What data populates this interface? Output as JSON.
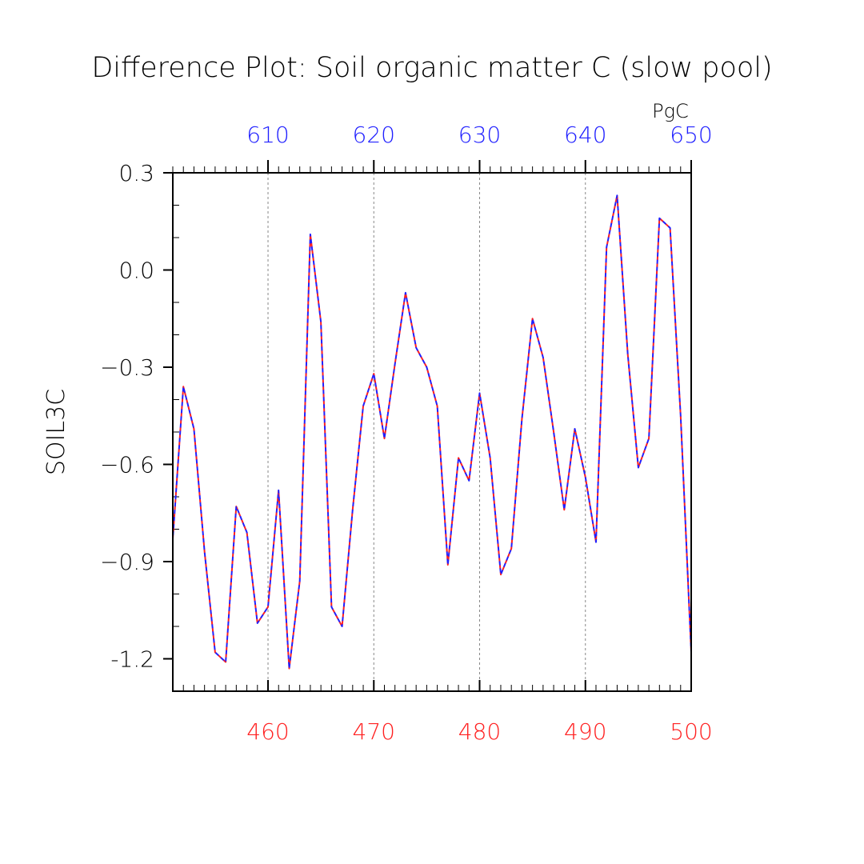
{
  "chart_data": {
    "type": "line",
    "title": "Difference Plot: Soil organic matter C (slow pool)",
    "ylabel": "SOIL3C",
    "top_axis_units": "PgC",
    "bottom_axis": {
      "xlim": [
        451,
        500
      ],
      "ticks": [
        460,
        470,
        480,
        490,
        500
      ],
      "tick_labels": [
        "460",
        "470",
        "480",
        "490",
        "500"
      ],
      "color": "#ff2020"
    },
    "top_axis": {
      "xlim": [
        601,
        650
      ],
      "ticks": [
        610,
        620,
        630,
        640,
        650
      ],
      "tick_labels": [
        "610",
        "620",
        "630",
        "640",
        "650"
      ],
      "color": "#2020ff"
    },
    "ylim": [
      -1.3,
      0.3
    ],
    "y_ticks": [
      0.3,
      0.0,
      -0.3,
      -0.6,
      -0.9,
      -1.2
    ],
    "y_tick_labels": [
      "0.3",
      "0.0",
      "−0.3",
      "−0.6",
      "−0.9",
      "-1.2"
    ],
    "grid": "vertical-dashed",
    "series": [
      {
        "color": "#ff2020",
        "dashed": true,
        "x": [
          451,
          452,
          453,
          454,
          455,
          456,
          457,
          458,
          459,
          460,
          461,
          462,
          463,
          464,
          465,
          466,
          467,
          468,
          469,
          470,
          471,
          472,
          473,
          474,
          475,
          476,
          477,
          478,
          479,
          480,
          481,
          482,
          483,
          484,
          485,
          486,
          487,
          488,
          489,
          490,
          491,
          492,
          493,
          494,
          495,
          496,
          497,
          498,
          499,
          500
        ],
        "values": [
          -0.83,
          -0.36,
          -0.49,
          -0.87,
          -1.18,
          -1.21,
          -0.73,
          -0.81,
          -1.09,
          -1.04,
          -0.68,
          -1.23,
          -0.96,
          0.11,
          -0.16,
          -1.04,
          -1.1,
          -0.74,
          -0.42,
          -0.32,
          -0.52,
          -0.29,
          -0.07,
          -0.24,
          -0.3,
          -0.42,
          -0.91,
          -0.58,
          -0.65,
          -0.38,
          -0.58,
          -0.94,
          -0.86,
          -0.46,
          -0.15,
          -0.27,
          -0.5,
          -0.74,
          -0.49,
          -0.64,
          -0.84,
          0.07,
          0.23,
          -0.26,
          -0.61,
          -0.52,
          0.16,
          0.13,
          -0.45,
          -1.18
        ]
      },
      {
        "color": "#2020ff",
        "dashed": false,
        "x": [
          601,
          602,
          603,
          604,
          605,
          606,
          607,
          608,
          609,
          610,
          611,
          612,
          613,
          614,
          615,
          616,
          617,
          618,
          619,
          620,
          621,
          622,
          623,
          624,
          625,
          626,
          627,
          628,
          629,
          630,
          631,
          632,
          633,
          634,
          635,
          636,
          637,
          638,
          639,
          640,
          641,
          642,
          643,
          644,
          645,
          646,
          647,
          648,
          649,
          650
        ],
        "values": [
          -0.83,
          -0.36,
          -0.49,
          -0.87,
          -1.18,
          -1.21,
          -0.73,
          -0.81,
          -1.09,
          -1.04,
          -0.68,
          -1.23,
          -0.96,
          0.11,
          -0.16,
          -1.04,
          -1.1,
          -0.74,
          -0.42,
          -0.32,
          -0.52,
          -0.29,
          -0.07,
          -0.24,
          -0.3,
          -0.42,
          -0.91,
          -0.58,
          -0.65,
          -0.38,
          -0.58,
          -0.94,
          -0.86,
          -0.46,
          -0.15,
          -0.27,
          -0.5,
          -0.74,
          -0.49,
          -0.64,
          -0.84,
          0.07,
          0.23,
          -0.26,
          -0.61,
          -0.52,
          0.16,
          0.13,
          -0.45,
          -1.18
        ]
      }
    ]
  }
}
